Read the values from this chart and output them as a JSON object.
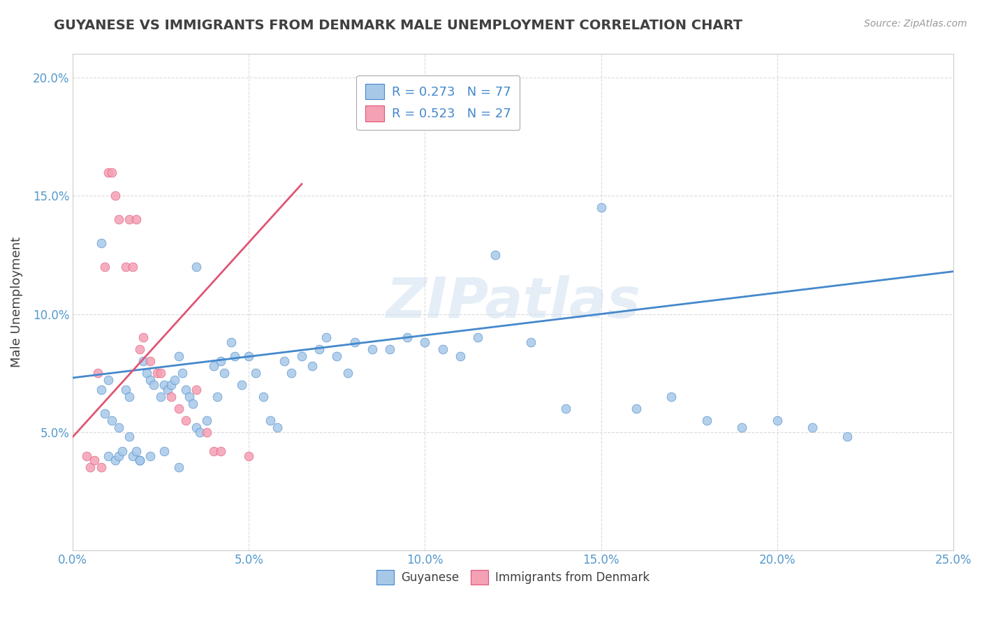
{
  "title": "GUYANESE VS IMMIGRANTS FROM DENMARK MALE UNEMPLOYMENT CORRELATION CHART",
  "source": "Source: ZipAtlas.com",
  "ylabel": "Male Unemployment",
  "xlim": [
    0.0,
    0.25
  ],
  "ylim": [
    0.0,
    0.21
  ],
  "xticks": [
    0.0,
    0.05,
    0.1,
    0.15,
    0.2,
    0.25
  ],
  "yticks": [
    0.05,
    0.1,
    0.15,
    0.2
  ],
  "xtick_labels": [
    "0.0%",
    "5.0%",
    "10.0%",
    "15.0%",
    "20.0%",
    "25.0%"
  ],
  "ytick_labels": [
    "5.0%",
    "10.0%",
    "15.0%",
    "20.0%"
  ],
  "legend_entries": [
    {
      "label": "R = 0.273   N = 77"
    },
    {
      "label": "R = 0.523   N = 27"
    }
  ],
  "blue_scatter_x": [
    0.008,
    0.01,
    0.01,
    0.012,
    0.013,
    0.014,
    0.015,
    0.016,
    0.017,
    0.018,
    0.019,
    0.02,
    0.021,
    0.022,
    0.023,
    0.025,
    0.026,
    0.027,
    0.028,
    0.029,
    0.03,
    0.031,
    0.032,
    0.033,
    0.034,
    0.035,
    0.036,
    0.038,
    0.04,
    0.041,
    0.042,
    0.043,
    0.045,
    0.046,
    0.048,
    0.05,
    0.052,
    0.054,
    0.056,
    0.058,
    0.06,
    0.062,
    0.065,
    0.068,
    0.07,
    0.072,
    0.075,
    0.078,
    0.08,
    0.085,
    0.09,
    0.095,
    0.1,
    0.105,
    0.11,
    0.115,
    0.12,
    0.13,
    0.14,
    0.15,
    0.16,
    0.17,
    0.18,
    0.19,
    0.2,
    0.21,
    0.22,
    0.008,
    0.009,
    0.011,
    0.013,
    0.016,
    0.019,
    0.022,
    0.026,
    0.03,
    0.035
  ],
  "blue_scatter_y": [
    0.068,
    0.04,
    0.072,
    0.038,
    0.04,
    0.042,
    0.068,
    0.065,
    0.04,
    0.042,
    0.038,
    0.08,
    0.075,
    0.072,
    0.07,
    0.065,
    0.07,
    0.068,
    0.07,
    0.072,
    0.082,
    0.075,
    0.068,
    0.065,
    0.062,
    0.052,
    0.05,
    0.055,
    0.078,
    0.065,
    0.08,
    0.075,
    0.088,
    0.082,
    0.07,
    0.082,
    0.075,
    0.065,
    0.055,
    0.052,
    0.08,
    0.075,
    0.082,
    0.078,
    0.085,
    0.09,
    0.082,
    0.075,
    0.088,
    0.085,
    0.085,
    0.09,
    0.088,
    0.085,
    0.082,
    0.09,
    0.125,
    0.088,
    0.06,
    0.145,
    0.06,
    0.065,
    0.055,
    0.052,
    0.055,
    0.052,
    0.048,
    0.13,
    0.058,
    0.055,
    0.052,
    0.048,
    0.038,
    0.04,
    0.042,
    0.035,
    0.12
  ],
  "pink_scatter_x": [
    0.004,
    0.005,
    0.006,
    0.007,
    0.008,
    0.009,
    0.01,
    0.011,
    0.012,
    0.013,
    0.015,
    0.016,
    0.017,
    0.018,
    0.019,
    0.02,
    0.022,
    0.024,
    0.025,
    0.028,
    0.03,
    0.032,
    0.035,
    0.038,
    0.04,
    0.042,
    0.05
  ],
  "pink_scatter_y": [
    0.04,
    0.035,
    0.038,
    0.075,
    0.035,
    0.12,
    0.16,
    0.16,
    0.15,
    0.14,
    0.12,
    0.14,
    0.12,
    0.14,
    0.085,
    0.09,
    0.08,
    0.075,
    0.075,
    0.065,
    0.06,
    0.055,
    0.068,
    0.05,
    0.042,
    0.042,
    0.04
  ],
  "blue_line_x": [
    0.0,
    0.25
  ],
  "blue_line_y": [
    0.073,
    0.118
  ],
  "pink_line_x": [
    0.0,
    0.065
  ],
  "pink_line_y": [
    0.048,
    0.155
  ],
  "blue_scatter_color": "#a8c8e8",
  "pink_scatter_color": "#f4a0b5",
  "blue_line_color": "#4488cc",
  "pink_line_color": "#e05575",
  "watermark_color": "#ccdff0",
  "background_color": "#ffffff",
  "grid_color": "#cccccc",
  "title_color": "#404040",
  "tick_color": "#5599cc"
}
